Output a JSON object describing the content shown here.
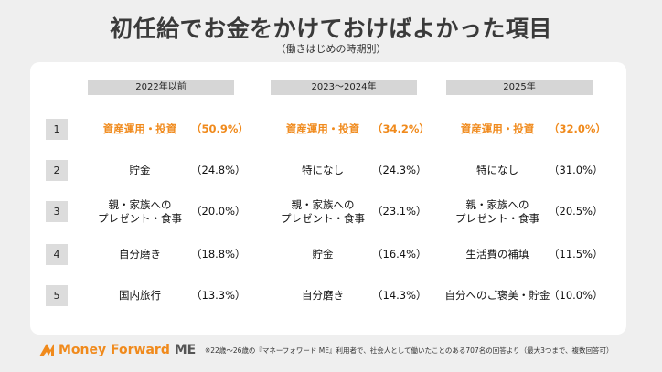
{
  "header": {
    "title": "初任給でお金をかけておけばよかった項目",
    "subtitle": "（働きはじめの時期別）"
  },
  "ranks": [
    "1",
    "2",
    "3",
    "4",
    "5"
  ],
  "columns": [
    {
      "header": "2022年以前",
      "items": [
        {
          "label": "資産運用・投資",
          "pct": "（50.9%）",
          "highlight": true
        },
        {
          "label": "貯金",
          "pct": "（24.8%）"
        },
        {
          "label": "親・家族への\nプレゼント・食事",
          "pct": "（20.0%）"
        },
        {
          "label": "自分磨き",
          "pct": "（18.8%）"
        },
        {
          "label": "国内旅行",
          "pct": "（13.3%）"
        }
      ]
    },
    {
      "header": "2023〜2024年",
      "items": [
        {
          "label": "資産運用・投資",
          "pct": "（34.2%）",
          "highlight": true
        },
        {
          "label": "特になし",
          "pct": "（24.3%）"
        },
        {
          "label": "親・家族への\nプレゼント・食事",
          "pct": "（23.1%）"
        },
        {
          "label": "貯金",
          "pct": "（16.4%）"
        },
        {
          "label": "自分磨き",
          "pct": "（14.3%）"
        }
      ]
    },
    {
      "header": "2025年",
      "items": [
        {
          "label": "資産運用・投資",
          "pct": "（32.0%）",
          "highlight": true
        },
        {
          "label": "特になし",
          "pct": "（31.0%）"
        },
        {
          "label": "親・家族への\nプレゼント・食事",
          "pct": "（20.5%）"
        },
        {
          "label": "生活費の補填",
          "pct": "（11.5%）"
        },
        {
          "label": "自分へのご褒美・貯金",
          "pct": "（10.0%）"
        }
      ]
    }
  ],
  "footer": {
    "logo_text": "Money Forward",
    "logo_suffix": "ME",
    "note": "※22歳〜26歳の『マネーフォワード ME』利用者で、社会人として働いたことのある707名の回答より（最大3つまで、複数回答可）",
    "brand_color": "#f08a1c"
  }
}
